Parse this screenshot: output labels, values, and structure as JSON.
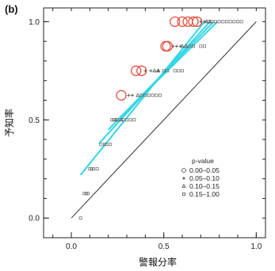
{
  "chart_data": {
    "type": "scatter",
    "panel_label": "(b)",
    "xlabel": "警報分率",
    "ylabel": "予知率",
    "xlim": [
      -0.15,
      1.05
    ],
    "ylim": [
      -0.1,
      1.07
    ],
    "x_ticks": [
      "0.0",
      "0.5",
      "1.0"
    ],
    "x_tick_values": [
      0.0,
      0.5,
      1.0
    ],
    "y_ticks": [
      "0.0",
      "0.5",
      "1.0"
    ],
    "y_tick_values": [
      0.0,
      0.5,
      1.0
    ],
    "reference_line": {
      "x": [
        0,
        1
      ],
      "y": [
        0,
        1
      ],
      "color": "#333333"
    },
    "legend": {
      "title": "p-value",
      "placement": "right-middle",
      "entries": [
        {
          "label": "0.00–0.05",
          "marker": "circle-large"
        },
        {
          "label": "0.05–0.10",
          "marker": "cross"
        },
        {
          "label": "0.10–0.15",
          "marker": "triangle"
        },
        {
          "label": "0.15–1.00",
          "marker": "square"
        }
      ]
    },
    "series": [
      {
        "name": "0.00–0.05",
        "marker": "circle-large",
        "color": "#e05040",
        "x": [
          0.27,
          0.35,
          0.38,
          0.51,
          0.52,
          0.56,
          0.6,
          0.63,
          0.66,
          0.68
        ],
        "y": [
          0.625,
          0.75,
          0.75,
          0.875,
          0.875,
          1.0,
          1.0,
          1.0,
          1.0,
          1.0
        ]
      },
      {
        "name": "0.05–0.10",
        "marker": "cross",
        "color": "#555555",
        "x": [
          0.31,
          0.33,
          0.4,
          0.43,
          0.47,
          0.55,
          0.57,
          0.59,
          0.7,
          0.72
        ],
        "y": [
          0.625,
          0.625,
          0.75,
          0.75,
          0.75,
          0.875,
          0.875,
          0.875,
          1.0,
          1.0
        ]
      },
      {
        "name": "0.10–0.15",
        "marker": "triangle",
        "color": "#555555",
        "x": [
          0.24,
          0.27,
          0.36,
          0.45,
          0.47,
          0.6,
          0.62,
          0.73,
          0.75
        ],
        "y": [
          0.5,
          0.5,
          0.625,
          0.75,
          0.75,
          0.875,
          0.875,
          1.0,
          1.0
        ]
      },
      {
        "name": "0.15–1.00",
        "marker": "square",
        "color": "#666666",
        "x": [
          0.05,
          0.07,
          0.08,
          0.09,
          0.1,
          0.11,
          0.12,
          0.14,
          0.16,
          0.18,
          0.19,
          0.21,
          0.22,
          0.23,
          0.25,
          0.28,
          0.3,
          0.32,
          0.34,
          0.38,
          0.4,
          0.42,
          0.44,
          0.46,
          0.48,
          0.5,
          0.52,
          0.56,
          0.58,
          0.6,
          0.64,
          0.66,
          0.7,
          0.72,
          0.74,
          0.76,
          0.78,
          0.8,
          0.82,
          0.84,
          0.86,
          0.88,
          0.9,
          0.92
        ],
        "y": [
          0.0,
          0.125,
          0.125,
          0.125,
          0.25,
          0.25,
          0.25,
          0.25,
          0.375,
          0.375,
          0.375,
          0.375,
          0.5,
          0.5,
          0.5,
          0.5,
          0.5,
          0.5,
          0.5,
          0.625,
          0.625,
          0.625,
          0.625,
          0.625,
          0.625,
          0.75,
          0.75,
          0.75,
          0.75,
          0.75,
          0.875,
          0.875,
          0.875,
          0.875,
          1.0,
          1.0,
          1.0,
          1.0,
          1.0,
          1.0,
          1.0,
          1.0,
          1.0,
          1.0
        ]
      },
      {
        "name": "fit 1",
        "marker": "line",
        "color": "#33d6e6",
        "x": [
          0.05,
          0.72
        ],
        "y": [
          0.22,
          1.0
        ]
      },
      {
        "name": "fit 2",
        "marker": "line",
        "color": "#33d6e6",
        "x": [
          0.15,
          0.75
        ],
        "y": [
          0.38,
          1.0
        ]
      },
      {
        "name": "fit 3",
        "marker": "line",
        "color": "#33d6e6",
        "x": [
          0.2,
          0.77
        ],
        "y": [
          0.45,
          1.0
        ]
      },
      {
        "name": "fit 4",
        "marker": "line",
        "color": "#33d6e6",
        "x": [
          0.25,
          0.79
        ],
        "y": [
          0.5,
          1.0
        ]
      }
    ],
    "grid": false
  }
}
